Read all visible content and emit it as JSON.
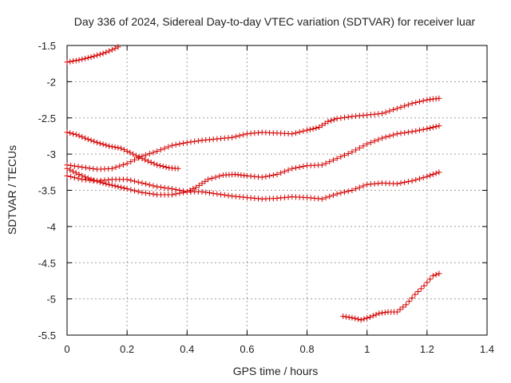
{
  "chart_data": {
    "type": "scatter",
    "title": "Day 336 of 2024, Sidereal Day-to-day VTEC variation (SDTVAR) for receiver luar",
    "xlabel": "GPS time / hours",
    "ylabel": "SDTVAR / TECUs",
    "xlim": [
      0,
      1.4
    ],
    "ylim": [
      -5.5,
      -1.5
    ],
    "xticks": [
      0,
      0.2,
      0.4,
      0.6,
      0.8,
      1,
      1.2,
      1.4
    ],
    "xtick_labels": [
      "0",
      "0.2",
      "0.4",
      "0.6",
      "0.8",
      "1",
      "1.2",
      "1.4"
    ],
    "yticks": [
      -1.5,
      -2,
      -2.5,
      -3,
      -3.5,
      -4,
      -4.5,
      -5,
      -5.5
    ],
    "ytick_labels": [
      "-1.5",
      "-2",
      "-2.5",
      "-3",
      "-3.5",
      "-4",
      "-4.5",
      "-5",
      "-5.5"
    ],
    "grid": true,
    "marker": "+",
    "color": "#d40000",
    "series": [
      {
        "name": "track-1",
        "points": [
          [
            0.0,
            -1.73
          ],
          [
            0.04,
            -1.7
          ],
          [
            0.08,
            -1.66
          ],
          [
            0.12,
            -1.61
          ],
          [
            0.15,
            -1.56
          ],
          [
            0.17,
            -1.52
          ]
        ]
      },
      {
        "name": "track-2",
        "points": [
          [
            0.0,
            -2.7
          ],
          [
            0.03,
            -2.73
          ],
          [
            0.06,
            -2.78
          ],
          [
            0.1,
            -2.84
          ],
          [
            0.14,
            -2.89
          ],
          [
            0.18,
            -2.92
          ],
          [
            0.22,
            -3.0
          ],
          [
            0.26,
            -3.08
          ],
          [
            0.3,
            -3.15
          ],
          [
            0.34,
            -3.19
          ],
          [
            0.37,
            -3.2
          ]
        ]
      },
      {
        "name": "track-3",
        "points": [
          [
            0.0,
            -3.15
          ],
          [
            0.05,
            -3.18
          ],
          [
            0.1,
            -3.21
          ],
          [
            0.15,
            -3.2
          ],
          [
            0.2,
            -3.13
          ],
          [
            0.25,
            -3.03
          ],
          [
            0.3,
            -2.96
          ],
          [
            0.35,
            -2.88
          ],
          [
            0.4,
            -2.84
          ],
          [
            0.45,
            -2.81
          ],
          [
            0.5,
            -2.79
          ],
          [
            0.55,
            -2.77
          ],
          [
            0.6,
            -2.72
          ],
          [
            0.65,
            -2.7
          ],
          [
            0.7,
            -2.71
          ],
          [
            0.75,
            -2.72
          ],
          [
            0.8,
            -2.67
          ],
          [
            0.84,
            -2.63
          ],
          [
            0.87,
            -2.55
          ],
          [
            0.9,
            -2.51
          ],
          [
            0.95,
            -2.48
          ],
          [
            1.0,
            -2.46
          ],
          [
            1.05,
            -2.44
          ],
          [
            1.1,
            -2.37
          ],
          [
            1.15,
            -2.3
          ],
          [
            1.2,
            -2.25
          ],
          [
            1.24,
            -2.23
          ]
        ]
      },
      {
        "name": "track-4",
        "points": [
          [
            0.0,
            -3.3
          ],
          [
            0.05,
            -3.35
          ],
          [
            0.1,
            -3.37
          ],
          [
            0.15,
            -3.35
          ],
          [
            0.2,
            -3.35
          ],
          [
            0.25,
            -3.4
          ],
          [
            0.3,
            -3.45
          ],
          [
            0.35,
            -3.48
          ],
          [
            0.4,
            -3.52
          ],
          [
            0.43,
            -3.46
          ],
          [
            0.47,
            -3.35
          ],
          [
            0.52,
            -3.29
          ],
          [
            0.56,
            -3.28
          ],
          [
            0.6,
            -3.3
          ],
          [
            0.65,
            -3.32
          ],
          [
            0.7,
            -3.28
          ],
          [
            0.75,
            -3.2
          ],
          [
            0.8,
            -3.16
          ],
          [
            0.85,
            -3.15
          ],
          [
            0.9,
            -3.06
          ],
          [
            0.95,
            -2.97
          ],
          [
            1.0,
            -2.86
          ],
          [
            1.05,
            -2.78
          ],
          [
            1.1,
            -2.72
          ],
          [
            1.15,
            -2.69
          ],
          [
            1.2,
            -2.65
          ],
          [
            1.24,
            -2.61
          ]
        ]
      },
      {
        "name": "track-5",
        "points": [
          [
            0.0,
            -3.2
          ],
          [
            0.04,
            -3.28
          ],
          [
            0.08,
            -3.35
          ],
          [
            0.12,
            -3.4
          ],
          [
            0.16,
            -3.44
          ],
          [
            0.2,
            -3.48
          ],
          [
            0.25,
            -3.53
          ],
          [
            0.3,
            -3.56
          ],
          [
            0.35,
            -3.56
          ],
          [
            0.4,
            -3.52
          ],
          [
            0.45,
            -3.52
          ],
          [
            0.5,
            -3.55
          ],
          [
            0.55,
            -3.58
          ],
          [
            0.6,
            -3.6
          ],
          [
            0.65,
            -3.62
          ],
          [
            0.7,
            -3.61
          ],
          [
            0.75,
            -3.59
          ],
          [
            0.8,
            -3.6
          ],
          [
            0.85,
            -3.62
          ],
          [
            0.9,
            -3.55
          ],
          [
            0.95,
            -3.5
          ],
          [
            1.0,
            -3.42
          ],
          [
            1.05,
            -3.4
          ],
          [
            1.1,
            -3.41
          ],
          [
            1.15,
            -3.37
          ],
          [
            1.2,
            -3.31
          ],
          [
            1.24,
            -3.25
          ]
        ]
      },
      {
        "name": "track-6",
        "points": [
          [
            0.92,
            -5.24
          ],
          [
            0.95,
            -5.26
          ],
          [
            0.98,
            -5.29
          ],
          [
            1.01,
            -5.25
          ],
          [
            1.04,
            -5.2
          ],
          [
            1.07,
            -5.18
          ],
          [
            1.1,
            -5.18
          ],
          [
            1.13,
            -5.08
          ],
          [
            1.16,
            -4.94
          ],
          [
            1.19,
            -4.82
          ],
          [
            1.22,
            -4.68
          ],
          [
            1.24,
            -4.65
          ]
        ]
      }
    ]
  }
}
